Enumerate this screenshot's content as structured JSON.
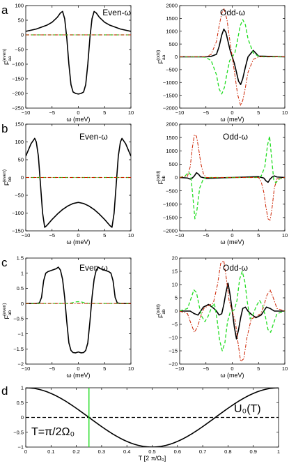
{
  "chart_data": [
    {
      "panel": "a",
      "title": "Even-ω",
      "type": "line",
      "ylabel": "F",
      "ylabel_sub": "aa",
      "ylabel_sup": "(even)",
      "xlabel": "ω (meV)",
      "xlim": [
        -10,
        10
      ],
      "ylim": [
        -250,
        100
      ],
      "xticks": [
        -10,
        -5,
        0,
        5,
        10
      ],
      "yticks": [
        -250,
        -200,
        -150,
        -100,
        -50,
        0,
        50,
        100
      ],
      "series": [
        {
          "style": "solid",
          "color": "#000000",
          "x": [
            -10,
            -8,
            -6,
            -5,
            -4,
            -3.4,
            -3,
            -2.6,
            -2.2,
            -1.8,
            -1.4,
            -1,
            -0.5,
            0,
            0.5,
            1,
            1.4,
            1.8,
            2.2,
            2.6,
            3,
            3.4,
            4,
            5,
            6,
            8,
            10
          ],
          "y": [
            12,
            20,
            33,
            43,
            60,
            75,
            80,
            55,
            -10,
            -100,
            -170,
            -195,
            -200,
            -202,
            -200,
            -195,
            -170,
            -100,
            -10,
            55,
            80,
            75,
            60,
            43,
            33,
            20,
            12
          ]
        },
        {
          "style": "dashed",
          "color": "#22dd22",
          "x": [
            -10,
            10
          ],
          "y": [
            0,
            0
          ]
        },
        {
          "style": "dashdot",
          "color": "#cc2200",
          "x": [
            -10,
            10
          ],
          "y": [
            0,
            0
          ]
        }
      ]
    },
    {
      "panel": "a-odd",
      "title": "Odd-ω",
      "type": "line",
      "ylabel": "F",
      "ylabel_sub": "aa",
      "ylabel_sup": "(odd)",
      "xlabel": "ω (meV)",
      "xlim": [
        -10,
        10
      ],
      "ylim": [
        -2000,
        2000
      ],
      "xticks": [
        -10,
        -5,
        0,
        5,
        10
      ],
      "yticks": [
        -2000,
        -1500,
        -1000,
        -500,
        0,
        500,
        1000,
        1500,
        2000
      ],
      "series": [
        {
          "style": "solid",
          "color": "#000000",
          "x": [
            -10,
            -5,
            -4,
            -3,
            -2.5,
            -2,
            -1.6,
            -1.2,
            -0.8,
            -0.4,
            0,
            0.4,
            0.8,
            1.2,
            1.6,
            2,
            2.5,
            3,
            4,
            5,
            10
          ],
          "y": [
            0,
            0,
            20,
            100,
            400,
            850,
            1080,
            950,
            600,
            250,
            0,
            -250,
            -600,
            -950,
            -1080,
            -850,
            -400,
            0,
            250,
            30,
            0
          ]
        },
        {
          "style": "dashed",
          "color": "#22dd22",
          "x": [
            -10,
            -6,
            -5,
            -4,
            -3,
            -2.5,
            -2,
            -1.5,
            -1,
            -0.5,
            0,
            0.5,
            1,
            1.5,
            2,
            2.5,
            3,
            4,
            5,
            6,
            10
          ],
          "y": [
            0,
            0,
            -20,
            -150,
            -700,
            -1250,
            -1450,
            -1200,
            -650,
            -150,
            0,
            150,
            650,
            1200,
            1450,
            1250,
            700,
            150,
            20,
            0,
            0
          ]
        },
        {
          "style": "dashdot",
          "color": "#cc2200",
          "x": [
            -10,
            -5,
            -4,
            -3,
            -2.5,
            -2,
            -1.6,
            -1,
            -0.5,
            0,
            0.5,
            1,
            1.6,
            2,
            2.5,
            3,
            4,
            5,
            10
          ],
          "y": [
            0,
            0,
            100,
            600,
            1200,
            1700,
            1900,
            1450,
            700,
            0,
            -700,
            -1450,
            -1900,
            -1700,
            -1200,
            -600,
            -100,
            0,
            0
          ]
        }
      ]
    },
    {
      "panel": "b",
      "title": "Even-ω",
      "type": "line",
      "ylabel": "F",
      "ylabel_sub": "bb",
      "ylabel_sup": "(even)",
      "xlabel": "ω (meV)",
      "xlim": [
        -10,
        10
      ],
      "ylim": [
        -150,
        150
      ],
      "xticks": [
        -10,
        -5,
        0,
        5,
        10
      ],
      "yticks": [
        -150,
        -100,
        -50,
        0,
        50,
        100,
        150
      ],
      "series": [
        {
          "style": "solid",
          "color": "#000000",
          "x": [
            -10,
            -9,
            -8.3,
            -8,
            -7.6,
            -7.2,
            -6.8,
            -6.4,
            -6,
            -5,
            -4,
            -3,
            -2,
            -1,
            0,
            1,
            2,
            3,
            4,
            5,
            6,
            6.4,
            6.8,
            7.2,
            7.6,
            8,
            8.3,
            9,
            10
          ],
          "y": [
            60,
            95,
            110,
            100,
            60,
            -20,
            -100,
            -140,
            -135,
            -118,
            -103,
            -90,
            -80,
            -73,
            -70,
            -73,
            -80,
            -90,
            -103,
            -118,
            -135,
            -140,
            -100,
            -20,
            60,
            100,
            110,
            95,
            60
          ]
        },
        {
          "style": "dashed",
          "color": "#22dd22",
          "x": [
            -10,
            10
          ],
          "y": [
            0,
            0
          ]
        },
        {
          "style": "dashdot",
          "color": "#cc2200",
          "x": [
            -10,
            10
          ],
          "y": [
            0,
            0
          ]
        }
      ]
    },
    {
      "panel": "b-odd",
      "title": "Odd-ω",
      "type": "line",
      "ylabel": "F",
      "ylabel_sub": "bb",
      "ylabel_sup": "(odd)",
      "xlabel": "ω (meV)",
      "xlim": [
        -10,
        10
      ],
      "ylim": [
        -2000,
        2000
      ],
      "xticks": [
        -10,
        -5,
        0,
        5,
        10
      ],
      "yticks": [
        -2000,
        -1500,
        -1000,
        -500,
        0,
        500,
        1000,
        1500,
        2000
      ],
      "series": [
        {
          "style": "solid",
          "color": "#000000",
          "x": [
            -10,
            -8.5,
            -8,
            -7.6,
            -7.2,
            -6.8,
            -6.4,
            -6,
            -5,
            -3,
            -1,
            0,
            1,
            3,
            5,
            6,
            6.4,
            6.8,
            7.2,
            7.6,
            8,
            8.5,
            10
          ],
          "y": [
            0,
            -20,
            -60,
            -20,
            60,
            180,
            120,
            20,
            -30,
            -20,
            -5,
            0,
            5,
            20,
            30,
            -20,
            -120,
            -180,
            -60,
            20,
            60,
            20,
            0
          ]
        },
        {
          "style": "dashed",
          "color": "#22dd22",
          "x": [
            -10,
            -9,
            -8.3,
            -7.9,
            -7.5,
            -7.1,
            -6.7,
            -6.2,
            -5.5,
            -5,
            0,
            5,
            5.5,
            6.2,
            6.7,
            7.1,
            7.5,
            7.9,
            8.3,
            9,
            10
          ],
          "y": [
            0,
            50,
            200,
            100,
            -700,
            -1550,
            -1200,
            -400,
            -50,
            0,
            0,
            0,
            50,
            400,
            1200,
            1550,
            700,
            -100,
            -200,
            -50,
            0
          ]
        },
        {
          "style": "dashdot",
          "color": "#cc2200",
          "x": [
            -10,
            -8.5,
            -8,
            -7.6,
            -7.2,
            -6.8,
            -6.4,
            -6,
            -5.5,
            -5,
            0,
            5,
            5.5,
            6,
            6.4,
            6.8,
            7.2,
            7.6,
            8,
            8.5,
            10
          ],
          "y": [
            0,
            50,
            400,
            1100,
            1600,
            1550,
            1100,
            550,
            150,
            0,
            0,
            0,
            -150,
            -550,
            -1100,
            -1550,
            -1600,
            -1100,
            -400,
            -50,
            0
          ]
        }
      ]
    },
    {
      "panel": "c",
      "title": "Even-ω",
      "type": "line",
      "ylabel": "F",
      "ylabel_sub": "ab",
      "ylabel_sup": "(even)",
      "xlabel": "ω (meV)",
      "xlim": [
        -10,
        10
      ],
      "ylim": [
        -2,
        1.5
      ],
      "xticks": [
        -10,
        -5,
        0,
        5,
        10
      ],
      "yticks": [
        -2,
        -1.5,
        -1,
        -0.5,
        0,
        0.5,
        1,
        1.5
      ],
      "series": [
        {
          "style": "solid",
          "color": "#000000",
          "x": [
            -10,
            -8,
            -7.4,
            -7,
            -6.6,
            -6.2,
            -5.8,
            -5,
            -4.2,
            -3.8,
            -3.4,
            -3,
            -2.6,
            -2.2,
            -1.8,
            -1.4,
            -1,
            -0.5,
            0,
            0.5,
            1,
            1.4,
            1.8,
            2.2,
            2.6,
            3,
            3.4,
            3.8,
            4.2,
            5,
            5.8,
            6.2,
            6.6,
            7,
            7.4,
            8,
            10
          ],
          "y": [
            0,
            0,
            0.02,
            0.2,
            0.75,
            1.0,
            1.05,
            1.1,
            1.15,
            1.2,
            1.1,
            0.8,
            0.2,
            -0.6,
            -1.3,
            -1.55,
            -1.62,
            -1.63,
            -1.6,
            -1.63,
            -1.62,
            -1.55,
            -1.3,
            -0.6,
            0.2,
            0.8,
            1.1,
            1.2,
            1.15,
            1.1,
            1.05,
            1.0,
            0.75,
            0.2,
            0.02,
            0,
            0
          ]
        },
        {
          "style": "dashed",
          "color": "#22dd22",
          "x": [
            -10,
            -2,
            -1.2,
            -0.6,
            0,
            0.6,
            1.2,
            2,
            10
          ],
          "y": [
            0,
            0,
            0.02,
            0.05,
            0.06,
            0.05,
            0.02,
            0,
            0
          ]
        },
        {
          "style": "dashdot",
          "color": "#cc2200",
          "x": [
            -10,
            10
          ],
          "y": [
            0,
            0
          ]
        }
      ]
    },
    {
      "panel": "c-odd",
      "title": "Odd-ω",
      "type": "line",
      "ylabel": "F",
      "ylabel_sub": "ab",
      "ylabel_sup": "(odd)",
      "xlabel": "ω (meV)",
      "xlim": [
        -10,
        10
      ],
      "ylim": [
        -20,
        20
      ],
      "xticks": [
        -10,
        -5,
        0,
        5,
        10
      ],
      "yticks": [
        -20,
        -15,
        -10,
        -5,
        0,
        5,
        10,
        15,
        20
      ],
      "series": [
        {
          "style": "solid",
          "color": "#000000",
          "x": [
            -10,
            -8,
            -7.2,
            -6.5,
            -5.5,
            -4.5,
            -3.5,
            -3,
            -2.5,
            -2,
            -1.6,
            -1.2,
            -0.8,
            -0.4,
            0,
            0.4,
            0.8,
            1.2,
            1.6,
            2,
            2.5,
            3,
            3.5,
            4.5,
            5.5,
            6.5,
            7.2,
            8,
            10
          ],
          "y": [
            0,
            0,
            -1,
            -1.5,
            1.5,
            2.5,
            1,
            0,
            -1.5,
            -1,
            2.5,
            7,
            10.5,
            6,
            0,
            -6,
            -10.5,
            -7,
            -2.5,
            1,
            1.5,
            0,
            -1,
            -2.5,
            -1.5,
            1.5,
            1,
            0,
            0
          ]
        },
        {
          "style": "dashed",
          "color": "#22dd22",
          "x": [
            -10,
            -8.5,
            -7.8,
            -7.3,
            -6.8,
            -6.3,
            -5.8,
            -5.2,
            -4.6,
            -4,
            -3.4,
            -2.9,
            -2.4,
            -1.9,
            -1.4,
            -0.9,
            -0.4,
            0,
            0.4,
            0.9,
            1.4,
            1.9,
            2.4,
            2.9,
            3.4,
            4,
            4.6,
            5.2,
            5.8,
            6.3,
            6.8,
            7.3,
            7.8,
            8.5,
            10
          ],
          "y": [
            0,
            1,
            5,
            8,
            7,
            2,
            -2,
            -4,
            -2,
            1,
            3,
            -3,
            -11,
            -15,
            -12,
            -4,
            -0.5,
            0,
            0.5,
            4,
            12,
            15,
            11,
            3,
            -3,
            -1,
            2,
            4,
            2,
            -2,
            -7,
            -8,
            -5,
            -1,
            0
          ]
        },
        {
          "style": "dashdot",
          "color": "#cc2200",
          "x": [
            -10,
            -8.5,
            -7.8,
            -7.2,
            -6.6,
            -6,
            -5.4,
            -4.6,
            -3.6,
            -2.8,
            -2.2,
            -1.6,
            -1.1,
            -0.6,
            0,
            0.6,
            1.1,
            1.6,
            2.2,
            2.8,
            3.6,
            4.6,
            5.4,
            6,
            6.6,
            7.2,
            7.8,
            8.5,
            10
          ],
          "y": [
            0,
            -1,
            -5,
            -8,
            -6,
            -2,
            1,
            2,
            3,
            10,
            18,
            19,
            12,
            4,
            0,
            -4,
            -12,
            -19,
            -18,
            -10,
            -3,
            -2,
            -1,
            2,
            6,
            8,
            5,
            1,
            0
          ]
        }
      ]
    },
    {
      "panel": "d",
      "type": "line",
      "xlabel": "T [2 π/Ω₀]",
      "xlim": [
        0,
        1
      ],
      "ylim": [
        -1,
        1
      ],
      "xticks": [
        0,
        0.1,
        0.2,
        0.3,
        0.4,
        0.5,
        0.6,
        0.7,
        0.8,
        0.9,
        1
      ],
      "yticks": [
        -1,
        -0.5,
        0,
        0.5,
        1
      ],
      "series": [
        {
          "style": "solid",
          "color": "#000000",
          "name": "U₀(T)",
          "function": "cos(2πT)",
          "x": [
            0,
            0.05,
            0.1,
            0.15,
            0.2,
            0.25,
            0.3,
            0.35,
            0.4,
            0.45,
            0.5,
            0.55,
            0.6,
            0.65,
            0.7,
            0.75,
            0.8,
            0.85,
            0.9,
            0.95,
            1
          ],
          "y": [
            1,
            0.951,
            0.809,
            0.588,
            0.309,
            0,
            -0.309,
            -0.588,
            -0.809,
            -0.951,
            -1,
            -0.951,
            -0.809,
            -0.588,
            -0.309,
            0,
            0.309,
            0.588,
            0.809,
            0.951,
            1
          ]
        },
        {
          "style": "dashed",
          "color": "#000000",
          "x": [
            0,
            1
          ],
          "y": [
            0,
            0
          ]
        },
        {
          "style": "vline",
          "color": "#22dd22",
          "x": [
            0.25,
            0.25
          ],
          "y": [
            -1,
            1
          ]
        }
      ],
      "annotations": [
        "U₀(T)",
        "T=π/2Ω₀"
      ]
    }
  ],
  "panel_letters": [
    "a",
    "b",
    "c",
    "d"
  ]
}
